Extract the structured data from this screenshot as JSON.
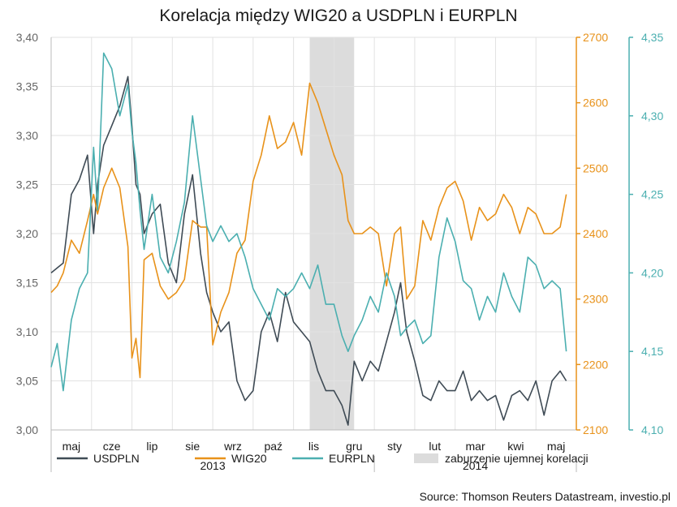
{
  "chart_data": {
    "type": "line",
    "title": "Korelacja między WIG20 a USDPLN i EURPLN",
    "source": "Source: Thomson Reuters Datastream, investio.pl",
    "x_month_labels": [
      "maj",
      "cze",
      "lip",
      "sie",
      "wrz",
      "paź",
      "lis",
      "gru",
      "sty",
      "lut",
      "mar",
      "kwi",
      "maj"
    ],
    "x_year_labels": [
      "2013",
      "2014"
    ],
    "x_range": [
      0,
      13
    ],
    "grid": true,
    "legend_position": "bottom",
    "shaded_region": {
      "label": "zaburzenie ujemnej korelacji",
      "x_start": 6.4,
      "x_end": 7.5,
      "color": "#dcdcdc"
    },
    "axes": {
      "left": {
        "ylim": [
          3.0,
          3.4
        ],
        "ticks": [
          "3,00",
          "3,05",
          "3,10",
          "3,15",
          "3,20",
          "3,25",
          "3,30",
          "3,35",
          "3,40"
        ],
        "color": "#666666"
      },
      "right1": {
        "ylim": [
          2100,
          2700
        ],
        "ticks": [
          "2100",
          "2200",
          "2300",
          "2400",
          "2500",
          "2600",
          "2700"
        ],
        "color": "#E8921A"
      },
      "right2": {
        "ylim": [
          4.1,
          4.35
        ],
        "ticks": [
          "4,10",
          "4,15",
          "4,20",
          "4,25",
          "4,30",
          "4,35"
        ],
        "color": "#4BAFB0"
      }
    },
    "series": [
      {
        "name": "USDPLN",
        "axis": "left",
        "color": "#3F4B55",
        "x": [
          0,
          0.15,
          0.3,
          0.5,
          0.7,
          0.9,
          1.05,
          1.15,
          1.3,
          1.5,
          1.7,
          1.9,
          2.0,
          2.1,
          2.2,
          2.3,
          2.5,
          2.7,
          2.9,
          3.1,
          3.3,
          3.5,
          3.7,
          3.85,
          4.0,
          4.2,
          4.4,
          4.6,
          4.8,
          5.0,
          5.2,
          5.4,
          5.6,
          5.8,
          6.0,
          6.2,
          6.4,
          6.6,
          6.8,
          7.0,
          7.2,
          7.35,
          7.5,
          7.7,
          7.9,
          8.1,
          8.3,
          8.5,
          8.65,
          8.8,
          9.0,
          9.2,
          9.4,
          9.6,
          9.8,
          10.0,
          10.2,
          10.4,
          10.6,
          10.8,
          11.0,
          11.2,
          11.4,
          11.6,
          11.8,
          12.0,
          12.2,
          12.4,
          12.6,
          12.75
        ],
        "values": [
          3.16,
          3.165,
          3.17,
          3.24,
          3.255,
          3.28,
          3.2,
          3.25,
          3.29,
          3.31,
          3.33,
          3.36,
          3.31,
          3.25,
          3.24,
          3.2,
          3.22,
          3.23,
          3.17,
          3.15,
          3.22,
          3.26,
          3.18,
          3.14,
          3.12,
          3.1,
          3.11,
          3.05,
          3.03,
          3.04,
          3.1,
          3.12,
          3.09,
          3.14,
          3.11,
          3.1,
          3.09,
          3.06,
          3.04,
          3.04,
          3.025,
          3.005,
          3.07,
          3.05,
          3.07,
          3.06,
          3.09,
          3.12,
          3.15,
          3.1,
          3.07,
          3.035,
          3.03,
          3.05,
          3.04,
          3.04,
          3.06,
          3.03,
          3.04,
          3.03,
          3.035,
          3.01,
          3.035,
          3.04,
          3.03,
          3.05,
          3.015,
          3.05,
          3.06,
          3.05
        ]
      },
      {
        "name": "WIG20",
        "axis": "right1",
        "color": "#E8921A",
        "x": [
          0,
          0.15,
          0.3,
          0.5,
          0.7,
          0.9,
          1.05,
          1.15,
          1.3,
          1.5,
          1.7,
          1.9,
          2.0,
          2.1,
          2.2,
          2.3,
          2.5,
          2.7,
          2.9,
          3.1,
          3.3,
          3.5,
          3.7,
          3.85,
          4.0,
          4.2,
          4.4,
          4.6,
          4.8,
          5.0,
          5.2,
          5.4,
          5.6,
          5.8,
          6.0,
          6.2,
          6.4,
          6.6,
          6.8,
          7.0,
          7.2,
          7.35,
          7.5,
          7.7,
          7.9,
          8.1,
          8.3,
          8.5,
          8.65,
          8.8,
          9.0,
          9.2,
          9.4,
          9.6,
          9.8,
          10.0,
          10.2,
          10.4,
          10.6,
          10.8,
          11.0,
          11.2,
          11.4,
          11.6,
          11.8,
          12.0,
          12.2,
          12.4,
          12.6,
          12.75
        ],
        "values": [
          2310,
          2320,
          2340,
          2390,
          2370,
          2420,
          2460,
          2430,
          2470,
          2500,
          2470,
          2380,
          2210,
          2240,
          2180,
          2360,
          2370,
          2320,
          2300,
          2310,
          2330,
          2420,
          2410,
          2410,
          2230,
          2280,
          2310,
          2370,
          2390,
          2480,
          2520,
          2580,
          2530,
          2540,
          2570,
          2520,
          2630,
          2600,
          2560,
          2520,
          2490,
          2420,
          2400,
          2400,
          2410,
          2400,
          2320,
          2400,
          2410,
          2300,
          2320,
          2420,
          2390,
          2440,
          2470,
          2480,
          2450,
          2390,
          2440,
          2420,
          2430,
          2460,
          2440,
          2400,
          2440,
          2430,
          2400,
          2400,
          2410,
          2460
        ]
      },
      {
        "name": "EURPLN",
        "axis": "right2",
        "color": "#4BAFB0",
        "x": [
          0,
          0.15,
          0.3,
          0.5,
          0.7,
          0.9,
          1.05,
          1.15,
          1.3,
          1.5,
          1.7,
          1.9,
          2.0,
          2.1,
          2.2,
          2.3,
          2.5,
          2.7,
          2.9,
          3.1,
          3.3,
          3.5,
          3.7,
          3.85,
          4.0,
          4.2,
          4.4,
          4.6,
          4.8,
          5.0,
          5.2,
          5.4,
          5.6,
          5.8,
          6.0,
          6.2,
          6.4,
          6.6,
          6.8,
          7.0,
          7.2,
          7.35,
          7.5,
          7.7,
          7.9,
          8.1,
          8.3,
          8.5,
          8.65,
          8.8,
          9.0,
          9.2,
          9.4,
          9.6,
          9.8,
          10.0,
          10.2,
          10.4,
          10.6,
          10.8,
          11.0,
          11.2,
          11.4,
          11.6,
          11.8,
          12.0,
          12.2,
          12.4,
          12.6,
          12.75
        ],
        "values": [
          4.14,
          4.155,
          4.125,
          4.17,
          4.19,
          4.2,
          4.28,
          4.24,
          4.34,
          4.33,
          4.3,
          4.32,
          4.29,
          4.27,
          4.24,
          4.215,
          4.25,
          4.21,
          4.2,
          4.22,
          4.245,
          4.3,
          4.26,
          4.23,
          4.22,
          4.23,
          4.22,
          4.225,
          4.21,
          4.19,
          4.18,
          4.17,
          4.19,
          4.185,
          4.19,
          4.2,
          4.19,
          4.205,
          4.18,
          4.18,
          4.16,
          4.15,
          4.16,
          4.17,
          4.185,
          4.175,
          4.2,
          4.185,
          4.16,
          4.165,
          4.17,
          4.155,
          4.16,
          4.21,
          4.235,
          4.22,
          4.195,
          4.19,
          4.17,
          4.185,
          4.175,
          4.2,
          4.185,
          4.175,
          4.21,
          4.205,
          4.19,
          4.195,
          4.19,
          4.15
        ]
      }
    ],
    "legend": [
      {
        "label": "USDPLN",
        "kind": "line",
        "color": "#3F4B55"
      },
      {
        "label": "WIG20",
        "kind": "line",
        "color": "#E8921A"
      },
      {
        "label": "EURPLN",
        "kind": "line",
        "color": "#4BAFB0"
      },
      {
        "label": "zaburzenie ujemnej korelacji",
        "kind": "box",
        "color": "#dcdcdc"
      }
    ]
  }
}
